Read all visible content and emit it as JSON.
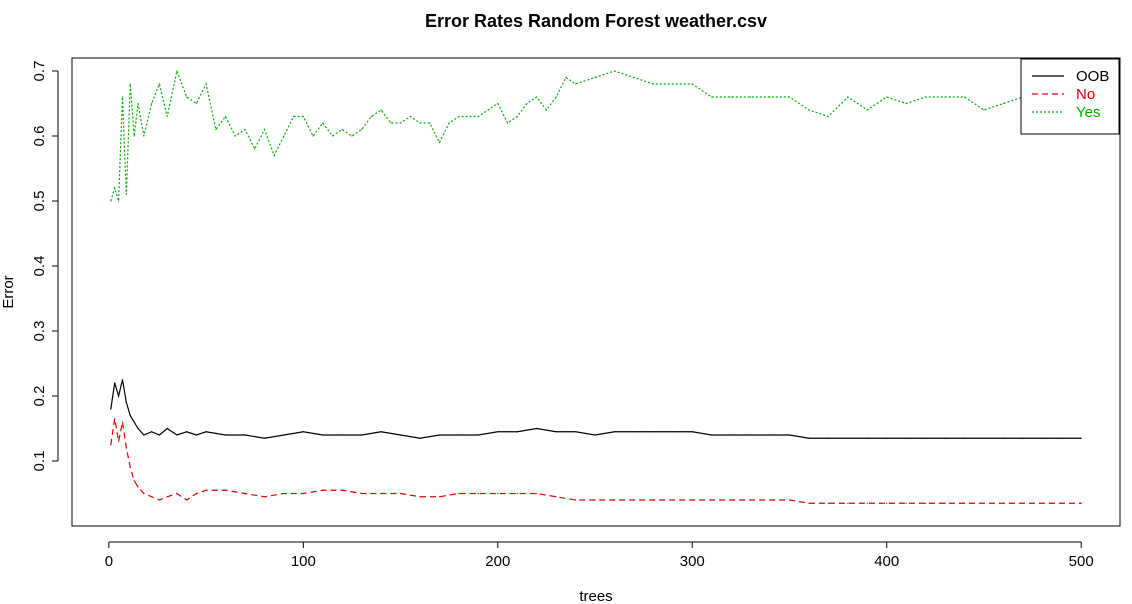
{
  "chart_data": {
    "type": "line",
    "title": "Error Rates Random Forest weather.csv",
    "xlabel": "trees",
    "ylabel": "Error",
    "xlim": [
      1,
      500
    ],
    "ylim": [
      0.0,
      0.72
    ],
    "x_ticks": [
      0,
      100,
      200,
      300,
      400,
      500
    ],
    "y_ticks": [
      0.1,
      0.2,
      0.3,
      0.4,
      0.5,
      0.6,
      0.7
    ],
    "x_tick_labels": [
      "0",
      "100",
      "200",
      "300",
      "400",
      "500"
    ],
    "y_tick_labels": [
      "0.1",
      "0.2",
      "0.3",
      "0.4",
      "0.5",
      "0.6",
      "0.7"
    ],
    "grid": false,
    "legend": {
      "position": "top-right",
      "entries": [
        "OOB",
        "No",
        "Yes"
      ]
    },
    "series": [
      {
        "name": "OOB",
        "color": "#000000",
        "dash": "solid",
        "x": [
          1,
          3,
          5,
          7,
          9,
          11,
          13,
          15,
          18,
          22,
          26,
          30,
          35,
          40,
          45,
          50,
          60,
          70,
          80,
          90,
          100,
          110,
          120,
          130,
          140,
          150,
          160,
          170,
          180,
          190,
          200,
          210,
          220,
          230,
          240,
          250,
          260,
          270,
          280,
          290,
          300,
          310,
          320,
          330,
          340,
          350,
          360,
          370,
          380,
          390,
          400,
          410,
          420,
          430,
          440,
          450,
          460,
          470,
          480,
          490,
          500
        ],
        "y": [
          0.18,
          0.22,
          0.2,
          0.225,
          0.19,
          0.17,
          0.16,
          0.15,
          0.14,
          0.145,
          0.14,
          0.15,
          0.14,
          0.145,
          0.14,
          0.145,
          0.14,
          0.14,
          0.135,
          0.14,
          0.145,
          0.14,
          0.14,
          0.14,
          0.145,
          0.14,
          0.135,
          0.14,
          0.14,
          0.14,
          0.145,
          0.145,
          0.15,
          0.145,
          0.145,
          0.14,
          0.145,
          0.145,
          0.145,
          0.145,
          0.145,
          0.14,
          0.14,
          0.14,
          0.14,
          0.14,
          0.135,
          0.135,
          0.135,
          0.135,
          0.135,
          0.135,
          0.135,
          0.135,
          0.135,
          0.135,
          0.135,
          0.135,
          0.135,
          0.135,
          0.135
        ]
      },
      {
        "name": "No",
        "color": "#df0000",
        "dash": "dashed",
        "x": [
          1,
          3,
          5,
          7,
          9,
          11,
          13,
          15,
          18,
          22,
          26,
          30,
          35,
          40,
          45,
          50,
          60,
          70,
          80,
          90,
          100,
          110,
          120,
          130,
          140,
          150,
          160,
          170,
          180,
          190,
          200,
          210,
          220,
          230,
          240,
          250,
          260,
          270,
          280,
          290,
          300,
          310,
          320,
          330,
          340,
          350,
          360,
          370,
          380,
          390,
          400,
          410,
          420,
          430,
          440,
          450,
          460,
          470,
          480,
          490,
          500
        ],
        "y": [
          0.125,
          0.165,
          0.13,
          0.16,
          0.12,
          0.09,
          0.07,
          0.06,
          0.05,
          0.045,
          0.04,
          0.045,
          0.05,
          0.04,
          0.05,
          0.055,
          0.055,
          0.05,
          0.045,
          0.05,
          0.05,
          0.055,
          0.055,
          0.05,
          0.05,
          0.05,
          0.045,
          0.045,
          0.05,
          0.05,
          0.05,
          0.05,
          0.05,
          0.045,
          0.04,
          0.04,
          0.04,
          0.04,
          0.04,
          0.04,
          0.04,
          0.04,
          0.04,
          0.04,
          0.04,
          0.04,
          0.035,
          0.035,
          0.035,
          0.035,
          0.035,
          0.035,
          0.035,
          0.035,
          0.035,
          0.035,
          0.035,
          0.035,
          0.035,
          0.035,
          0.035
        ]
      },
      {
        "name": "Yes",
        "color": "#00b000",
        "dash": "dotted",
        "x": [
          1,
          3,
          5,
          7,
          9,
          11,
          13,
          15,
          18,
          22,
          26,
          30,
          35,
          40,
          45,
          50,
          55,
          60,
          65,
          70,
          75,
          80,
          85,
          90,
          95,
          100,
          105,
          110,
          115,
          120,
          125,
          130,
          135,
          140,
          145,
          150,
          155,
          160,
          165,
          170,
          175,
          180,
          190,
          200,
          205,
          210,
          215,
          220,
          225,
          230,
          235,
          240,
          250,
          260,
          270,
          280,
          290,
          300,
          310,
          320,
          330,
          340,
          350,
          360,
          370,
          380,
          390,
          400,
          410,
          420,
          430,
          440,
          450,
          460,
          470,
          480,
          490,
          500
        ],
        "y": [
          0.5,
          0.52,
          0.5,
          0.66,
          0.51,
          0.68,
          0.6,
          0.65,
          0.6,
          0.65,
          0.68,
          0.63,
          0.7,
          0.66,
          0.65,
          0.68,
          0.61,
          0.63,
          0.6,
          0.61,
          0.58,
          0.61,
          0.57,
          0.6,
          0.63,
          0.63,
          0.6,
          0.62,
          0.6,
          0.61,
          0.6,
          0.61,
          0.63,
          0.64,
          0.62,
          0.62,
          0.63,
          0.62,
          0.62,
          0.59,
          0.62,
          0.63,
          0.63,
          0.65,
          0.62,
          0.63,
          0.65,
          0.66,
          0.64,
          0.66,
          0.69,
          0.68,
          0.69,
          0.7,
          0.69,
          0.68,
          0.68,
          0.68,
          0.66,
          0.66,
          0.66,
          0.66,
          0.66,
          0.64,
          0.63,
          0.66,
          0.64,
          0.66,
          0.65,
          0.66,
          0.66,
          0.66,
          0.64,
          0.65,
          0.66,
          0.66,
          0.66,
          0.66
        ]
      }
    ]
  }
}
